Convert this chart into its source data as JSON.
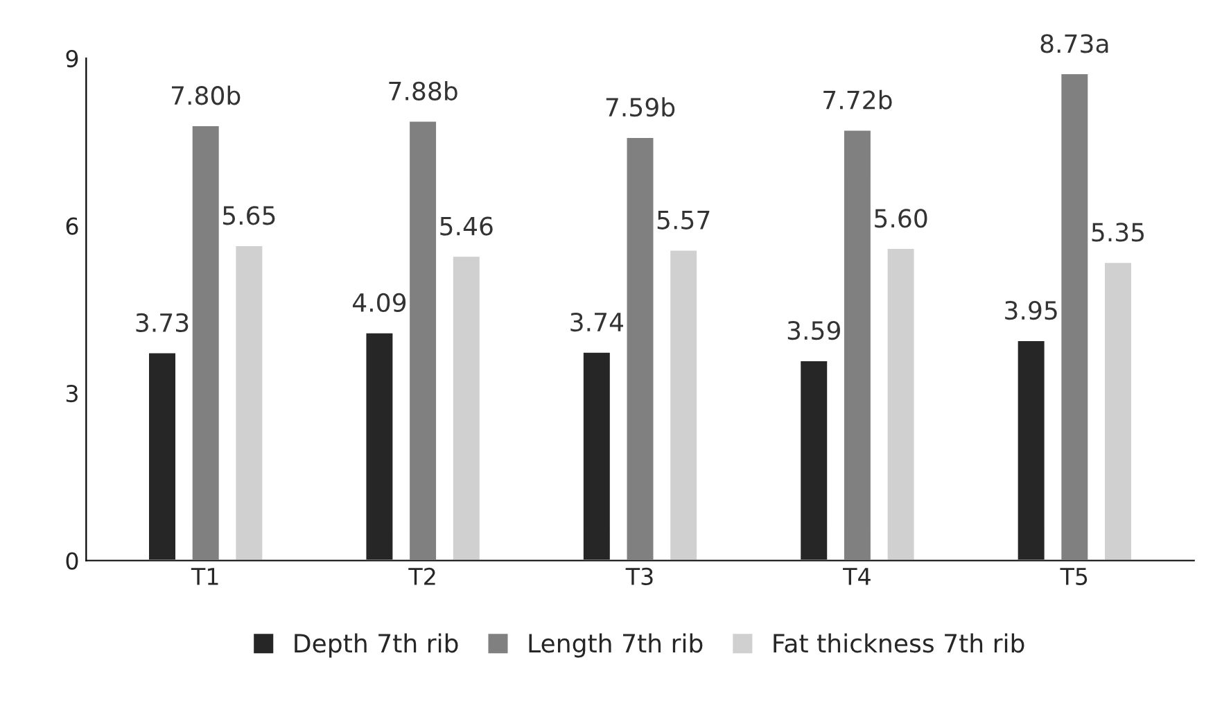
{
  "chart_data": {
    "type": "bar",
    "categories": [
      "T1",
      "T2",
      "T3",
      "T4",
      "T5"
    ],
    "series": [
      {
        "name": "Depth 7th rib",
        "color": "#262626",
        "values": [
          3.73,
          4.09,
          3.74,
          3.59,
          3.95
        ],
        "value_labels": [
          "3.73",
          "4.09",
          "3.74",
          "3.59",
          "3.95"
        ]
      },
      {
        "name": "Length 7th rib",
        "color": "#808080",
        "values": [
          7.8,
          7.88,
          7.59,
          7.72,
          8.73
        ],
        "value_labels": [
          "7.80b",
          "7.88b",
          "7.59b",
          "7.72b",
          "8.73a"
        ]
      },
      {
        "name": "Fat thickness 7th rib",
        "color": "#d0d0d0",
        "values": [
          5.65,
          5.46,
          5.57,
          5.6,
          5.35
        ],
        "value_labels": [
          "5.65",
          "5.46",
          "5.57",
          "5.60",
          "5.35"
        ]
      }
    ],
    "ylim": [
      0,
      9
    ],
    "yticks": [
      0,
      3,
      6,
      9
    ],
    "grid": false,
    "legend": "bottom"
  }
}
